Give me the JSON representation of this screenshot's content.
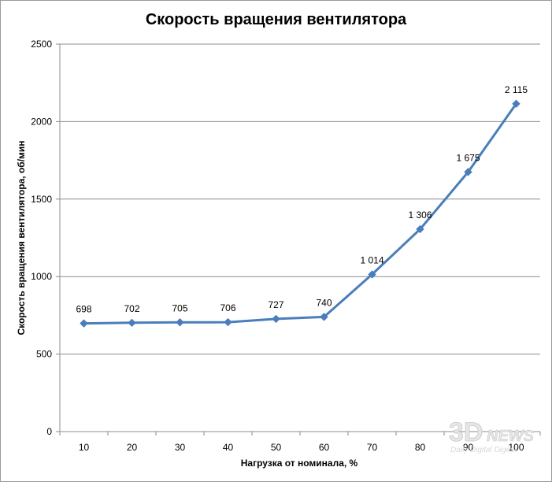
{
  "chart_data": {
    "type": "line",
    "title": "Скорость вращения вентилятора",
    "xlabel": "Нагрузка от номинала, %",
    "ylabel": "Скорость вращения вентилятора, об/мин",
    "categories": [
      "10",
      "20",
      "30",
      "40",
      "50",
      "60",
      "70",
      "80",
      "90",
      "100"
    ],
    "series": [
      {
        "values": [
          698,
          702,
          705,
          706,
          727,
          740,
          1014,
          1306,
          1675,
          2115
        ],
        "data_labels": [
          "698",
          "702",
          "705",
          "706",
          "727",
          "740",
          "1 014",
          "1 306",
          "1 675",
          "2 115"
        ]
      }
    ],
    "ylim": [
      0,
      2500
    ],
    "yticks": [
      "0",
      "500",
      "1000",
      "1500",
      "2000",
      "2500"
    ],
    "grid": true,
    "legend": "none",
    "line_color": "#4a7ebb",
    "marker": "diamond"
  },
  "watermark": {
    "brand": "3DNEWS",
    "tagline": "Daily Digital Digest"
  }
}
